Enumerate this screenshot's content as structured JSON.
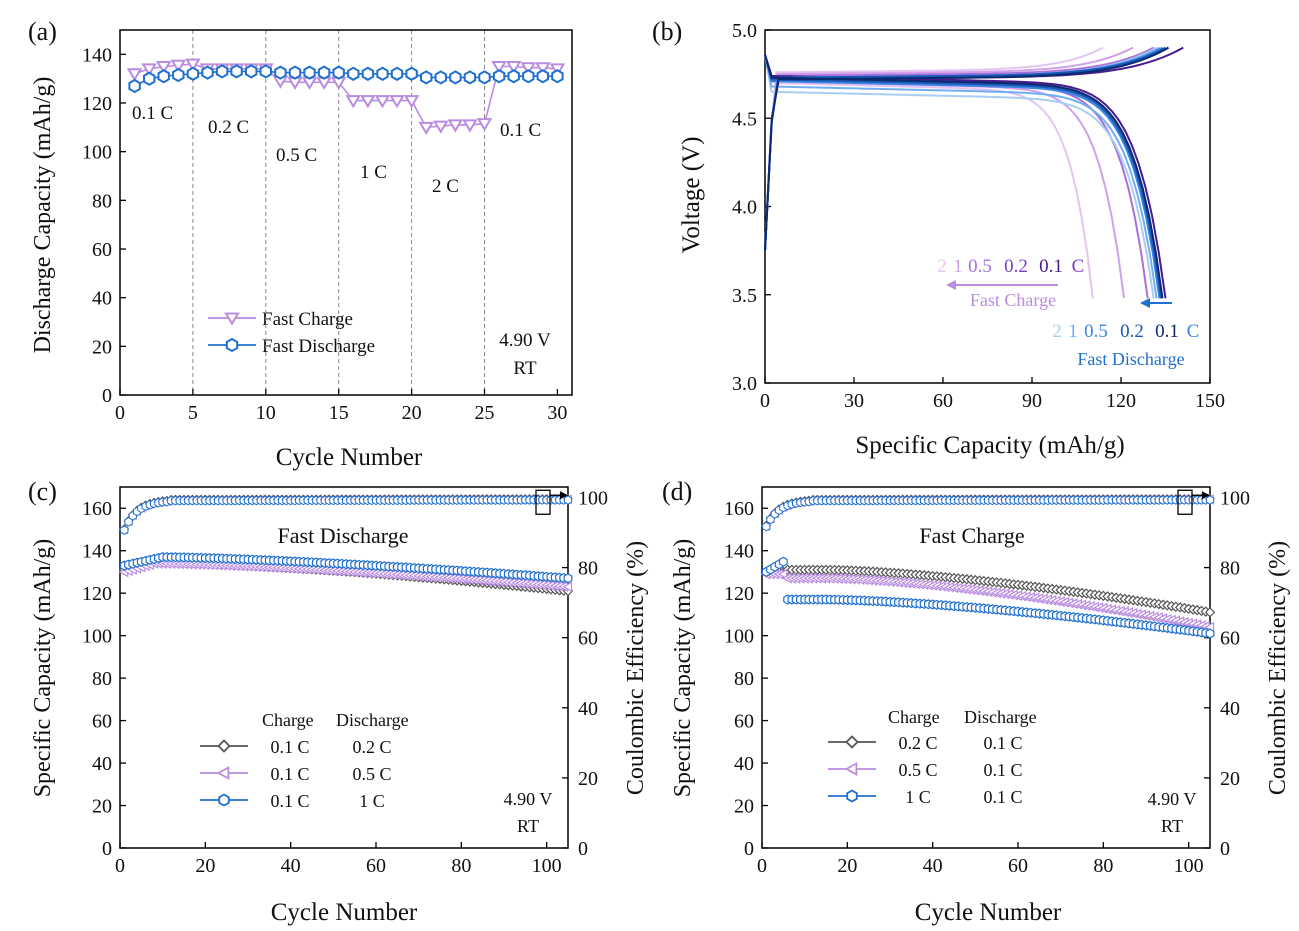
{
  "colors": {
    "charge": "#b98ce0",
    "discharge": "#2070d0",
    "gray": "#555555",
    "frame": "#000000"
  },
  "chart_data": [
    {
      "type": "scatter",
      "panel_label": "(a)",
      "title": "",
      "xlabel": "Cycle Number",
      "ylabel": "Discharge Capacity (mAh/g)",
      "xlim": [
        0,
        31
      ],
      "ylim": [
        0,
        150
      ],
      "xticks": [
        0,
        5,
        10,
        15,
        20,
        25,
        30
      ],
      "yticks": [
        0,
        20,
        40,
        60,
        80,
        100,
        120,
        140
      ],
      "vlines": [
        5,
        10,
        15,
        20,
        25
      ],
      "rate_labels": [
        "0.1 C",
        "0.2 C",
        "0.5 C",
        "1 C",
        "2 C",
        "0.1 C"
      ],
      "annotations": [
        "4.90 V",
        "RT"
      ],
      "series": [
        {
          "name": "Fast Charge",
          "marker": "triangle-down",
          "color": "#b98ce0",
          "x": [
            1,
            2,
            3,
            4,
            5,
            6,
            7,
            8,
            9,
            10,
            11,
            12,
            13,
            14,
            15,
            16,
            17,
            18,
            19,
            20,
            21,
            22,
            23,
            24,
            25,
            26,
            27,
            28,
            29,
            30
          ],
          "y": [
            132,
            134,
            135,
            135.5,
            136,
            134,
            134,
            134,
            134,
            134,
            129,
            128.5,
            128.5,
            128.5,
            128.5,
            121,
            121,
            121,
            121,
            121,
            110,
            110.5,
            111,
            111,
            111.5,
            135,
            135,
            134.5,
            134.5,
            134
          ]
        },
        {
          "name": "Fast Discharge",
          "marker": "hexagon",
          "color": "#2070d0",
          "x": [
            1,
            2,
            3,
            4,
            5,
            6,
            7,
            8,
            9,
            10,
            11,
            12,
            13,
            14,
            15,
            16,
            17,
            18,
            19,
            20,
            21,
            22,
            23,
            24,
            25,
            26,
            27,
            28,
            29,
            30
          ],
          "y": [
            127,
            130,
            131,
            131.5,
            132,
            132.5,
            133,
            133,
            133,
            133,
            132.5,
            132.5,
            132.5,
            132.5,
            132.5,
            132,
            132,
            132,
            132,
            132,
            130.5,
            130.5,
            130.5,
            130.5,
            130.5,
            131,
            131,
            131,
            131,
            131
          ]
        }
      ]
    },
    {
      "type": "line",
      "panel_label": "(b)",
      "title": "",
      "xlabel": "Specific Capacity (mAh/g)",
      "ylabel": "Voltage (V)",
      "xlim": [
        0,
        150
      ],
      "ylim": [
        3.0,
        5.0
      ],
      "xticks": [
        0,
        30,
        60,
        90,
        120,
        150
      ],
      "yticks": [
        3.0,
        3.5,
        4.0,
        4.5,
        5.0
      ],
      "charge_legend": {
        "rates": [
          "2",
          "1",
          "0.5",
          "0.2",
          "0.1",
          "C"
        ],
        "label": "Fast Charge"
      },
      "discharge_legend": {
        "rates": [
          "2",
          "1",
          "0.5",
          "0.2",
          "0.1",
          "C"
        ],
        "label": "Fast Discharge"
      },
      "series": [
        {
          "name": "Fast Charge 2 C",
          "group": "charge",
          "color": "#e4c4f4",
          "capacity": 110.5,
          "charge_end": 114,
          "plateau": 4.67,
          "charge_plateau": 4.76
        },
        {
          "name": "Fast Charge 1 C",
          "group": "charge",
          "color": "#d0a0ec",
          "capacity": 121,
          "charge_end": 124,
          "plateau": 4.68,
          "charge_plateau": 4.75
        },
        {
          "name": "Fast Charge 0.5 C",
          "group": "charge",
          "color": "#a870d8",
          "capacity": 129,
          "charge_end": 131,
          "plateau": 4.69,
          "charge_plateau": 4.74
        },
        {
          "name": "Fast Charge 0.2 C",
          "group": "charge",
          "color": "#7a3ec0",
          "capacity": 133,
          "charge_end": 136,
          "plateau": 4.7,
          "charge_plateau": 4.73
        },
        {
          "name": "Fast Charge 0.1 C",
          "group": "charge",
          "color": "#4a1a90",
          "capacity": 135,
          "charge_end": 141,
          "plateau": 4.71,
          "charge_plateau": 4.72
        },
        {
          "name": "Fast Discharge 2 C",
          "group": "discharge",
          "color": "#a8cef4",
          "capacity": 131,
          "charge_end": 132,
          "plateau": 4.62,
          "charge_plateau": 4.73
        },
        {
          "name": "Fast Discharge 1 C",
          "group": "discharge",
          "color": "#70aef0",
          "capacity": 132,
          "charge_end": 133,
          "plateau": 4.65,
          "charge_plateau": 4.73
        },
        {
          "name": "Fast Discharge 0.5 C",
          "group": "discharge",
          "color": "#3a86e0",
          "capacity": 133,
          "charge_end": 134,
          "plateau": 4.68,
          "charge_plateau": 4.73
        },
        {
          "name": "Fast Discharge 0.2 C",
          "group": "discharge",
          "color": "#1a58b8",
          "capacity": 133.5,
          "charge_end": 135,
          "plateau": 4.69,
          "charge_plateau": 4.73
        },
        {
          "name": "Fast Discharge 0.1 C",
          "group": "discharge",
          "color": "#0a2a70",
          "capacity": 134,
          "charge_end": 136,
          "plateau": 4.7,
          "charge_plateau": 4.72
        }
      ]
    },
    {
      "type": "scatter",
      "panel_label": "(c)",
      "title": "Fast Discharge",
      "xlabel": "Cycle Number",
      "ylabel": "Specific Capacity (mAh/g)",
      "ylabel_right": "Coulombic Efficiency (%)",
      "xlim": [
        0,
        105
      ],
      "ylim": [
        0,
        170
      ],
      "ylim_right": [
        0,
        103
      ],
      "xticks": [
        0,
        20,
        40,
        60,
        80,
        100
      ],
      "yticks": [
        0,
        20,
        40,
        60,
        80,
        100,
        120,
        140,
        160
      ],
      "yticks_right": [
        0,
        20,
        40,
        60,
        80,
        100
      ],
      "legend_header": [
        "Charge",
        "Discharge"
      ],
      "annotations": [
        "4.90 V",
        "RT"
      ],
      "series": [
        {
          "name": "0.1 C / 0.2 C",
          "charge": "0.1 C",
          "discharge": "0.2 C",
          "marker": "diamond",
          "color": "#555555",
          "start": 131,
          "peak": 135,
          "peak_cycle": 8,
          "end": 121
        },
        {
          "name": "0.1 C / 0.5 C",
          "charge": "0.1 C",
          "discharge": "0.5 C",
          "marker": "triangle-left",
          "color": "#b98ce0",
          "start": 130,
          "peak": 134,
          "peak_cycle": 8,
          "end": 123
        },
        {
          "name": "0.1 C / 1 C",
          "charge": "0.1 C",
          "discharge": "1 C",
          "marker": "hexagon",
          "color": "#2070d0",
          "start": 133,
          "peak": 137,
          "peak_cycle": 10,
          "end": 127
        }
      ],
      "efficiency": {
        "start": 91,
        "plateau": 99.4,
        "end": 99.6
      }
    },
    {
      "type": "scatter",
      "panel_label": "(d)",
      "title": "Fast Charge",
      "xlabel": "Cycle Number",
      "ylabel": "Specific Capacity (mAh/g)",
      "ylabel_right": "Coulombic Efficiency (%)",
      "xlim": [
        0,
        105
      ],
      "ylim": [
        0,
        170
      ],
      "ylim_right": [
        0,
        103
      ],
      "xticks": [
        0,
        20,
        40,
        60,
        80,
        100
      ],
      "yticks": [
        0,
        20,
        40,
        60,
        80,
        100,
        120,
        140,
        160
      ],
      "yticks_right": [
        0,
        20,
        40,
        60,
        80,
        100
      ],
      "legend_header": [
        "Charge",
        "Discharge"
      ],
      "annotations": [
        "4.90 V",
        "RT"
      ],
      "series": [
        {
          "name": "0.2 C / 0.1 C",
          "charge": "0.2 C",
          "discharge": "0.1 C",
          "marker": "diamond",
          "color": "#555555",
          "start": 130,
          "plateau": 131,
          "end": 111
        },
        {
          "name": "0.5 C / 0.1 C",
          "charge": "0.5 C",
          "discharge": "0.1 C",
          "marker": "triangle-left",
          "color": "#b98ce0",
          "start": 129,
          "plateau": 127,
          "end": 104
        },
        {
          "name": "1 C / 0.1 C",
          "charge": "1 C",
          "discharge": "0.1 C",
          "marker": "hexagon",
          "color": "#2070d0",
          "start": 131,
          "plateau": 117,
          "end": 101
        }
      ],
      "efficiency": {
        "start": 92,
        "plateau": 99.4,
        "end": 99.6
      }
    }
  ]
}
